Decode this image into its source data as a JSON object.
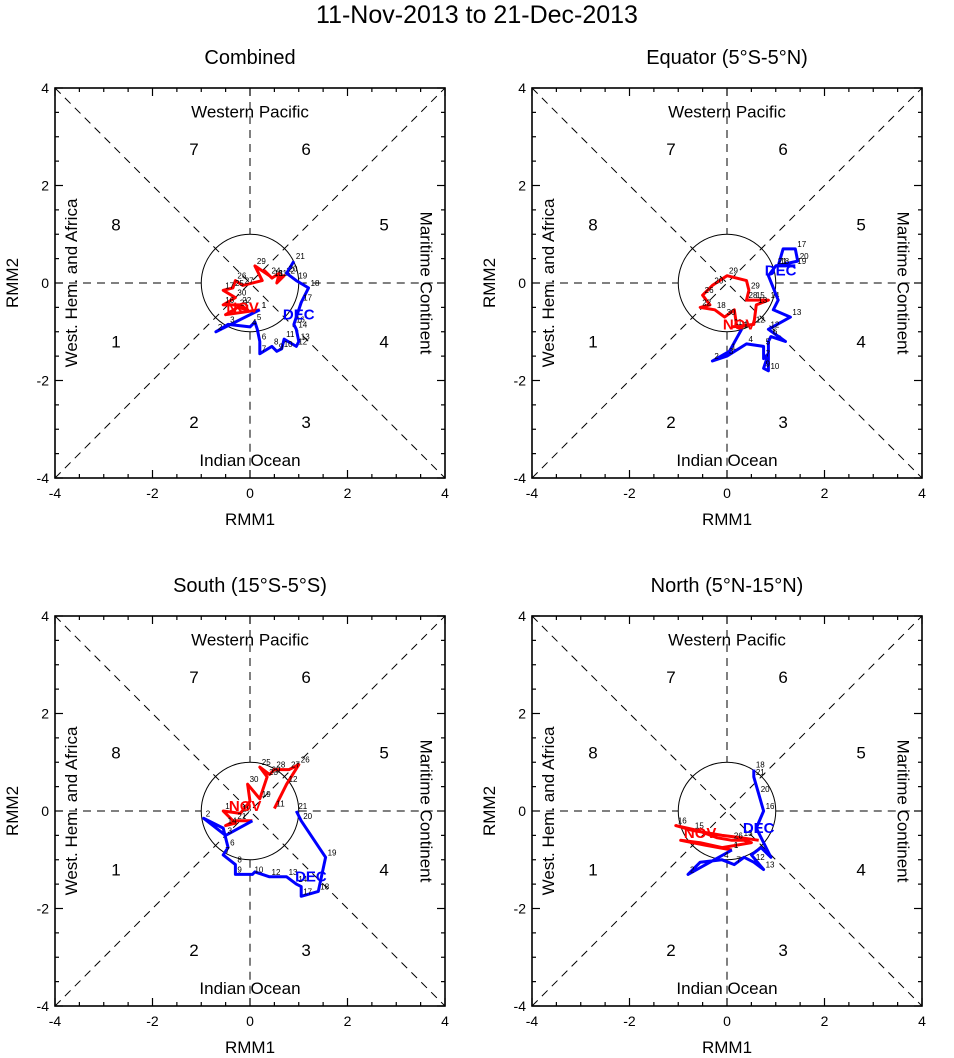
{
  "title": "11-Nov-2013 to 21-Dec-2013",
  "colors": {
    "nov": "#ff0000",
    "dec": "#0000ff",
    "axis": "#000000"
  },
  "chart_data": [
    {
      "type": "line",
      "title": "Combined",
      "xlabel": "RMM1",
      "ylabel": "RMM2",
      "xlim": [
        -4,
        4
      ],
      "ylim": [
        -4,
        4
      ],
      "xticks": [
        "-4",
        "-2",
        "0",
        "2",
        "4"
      ],
      "yticks": [
        "-4",
        "-2",
        "0",
        "2",
        "4"
      ],
      "phase_labels": [
        "1",
        "2",
        "3",
        "4",
        "5",
        "6",
        "7",
        "8"
      ],
      "region_labels": {
        "top": "Western Pacific",
        "bottom": "Indian Ocean",
        "left": "West. Hem. and Africa",
        "right": "Maritime Continent"
      },
      "month_labels": {
        "nov": {
          "text": "NOV",
          "x": -0.15,
          "y": -0.6
        },
        "dec": {
          "text": "DEC",
          "x": 1.0,
          "y": -0.75
        }
      },
      "series": [
        {
          "name": "NOV",
          "points": [
            [
              0.55,
              0.1,
              "11"
            ],
            [
              0.7,
              0.15,
              "12"
            ],
            [
              0.55,
              0.0,
              ""
            ],
            [
              0.6,
              0.2,
              ""
            ],
            [
              0.45,
              0.1,
              "13"
            ],
            [
              0.3,
              0.25,
              ""
            ],
            [
              0.4,
              0.15,
              "24"
            ],
            [
              0.1,
              0.35,
              "29"
            ],
            [
              0.25,
              0.05,
              ""
            ],
            [
              -0.15,
              -0.05,
              "27"
            ],
            [
              -0.3,
              0.05,
              "26"
            ],
            [
              -0.35,
              -0.1,
              "25"
            ],
            [
              -0.55,
              -0.15,
              "17"
            ],
            [
              -0.3,
              -0.3,
              "30"
            ],
            [
              -0.55,
              -0.45,
              "16"
            ],
            [
              -0.2,
              -0.45,
              "22"
            ],
            [
              -0.05,
              -0.55,
              ""
            ],
            [
              -0.25,
              -0.5,
              "21"
            ],
            [
              -0.5,
              -0.65,
              ""
            ],
            [
              0.2,
              -0.55,
              "1"
            ]
          ]
        },
        {
          "name": "DEC",
          "points": [
            [
              0.2,
              -0.55,
              "1"
            ],
            [
              -0.7,
              -1.0,
              "2"
            ],
            [
              -0.45,
              -0.85,
              "3"
            ],
            [
              0.0,
              -0.9,
              "4"
            ],
            [
              0.1,
              -0.8,
              "5"
            ],
            [
              0.15,
              -0.95,
              ""
            ],
            [
              0.2,
              -1.2,
              "6"
            ],
            [
              0.2,
              -1.45,
              "7"
            ],
            [
              0.45,
              -1.3,
              "8"
            ],
            [
              0.55,
              -1.4,
              "9"
            ],
            [
              0.65,
              -1.35,
              "10"
            ],
            [
              0.7,
              -1.15,
              "11"
            ],
            [
              0.95,
              -1.3,
              "12"
            ],
            [
              1.0,
              -1.2,
              "13"
            ],
            [
              0.95,
              -0.95,
              "14"
            ],
            [
              0.9,
              -0.85,
              "16"
            ],
            [
              1.05,
              -0.4,
              "17"
            ],
            [
              1.2,
              -0.1,
              "18"
            ],
            [
              0.95,
              0.05,
              "19"
            ],
            [
              0.75,
              0.2,
              "20"
            ],
            [
              0.9,
              0.45,
              "21"
            ]
          ]
        }
      ]
    },
    {
      "type": "line",
      "title": "Equator (5°S-5°N)",
      "xlabel": "RMM1",
      "ylabel": "RMM2",
      "xlim": [
        -4,
        4
      ],
      "ylim": [
        -4,
        4
      ],
      "xticks": [
        "-4",
        "-2",
        "0",
        "2",
        "4"
      ],
      "yticks": [
        "-4",
        "-2",
        "0",
        "2",
        "4"
      ],
      "phase_labels": [
        "1",
        "2",
        "3",
        "4",
        "5",
        "6",
        "7",
        "8"
      ],
      "region_labels": {
        "top": "Western Pacific",
        "bottom": "Indian Ocean",
        "left": "West. Hem. and Africa",
        "right": "Maritime Continent"
      },
      "month_labels": {
        "nov": {
          "text": "NOV",
          "x": 0.25,
          "y": -0.95
        },
        "dec": {
          "text": "DEC",
          "x": 1.1,
          "y": 0.15
        }
      },
      "series": [
        {
          "name": "NOV",
          "points": [
            [
              0.1,
              -0.9,
              "11"
            ],
            [
              0.55,
              -0.85,
              "12"
            ],
            [
              0.6,
              -0.45,
              "13"
            ],
            [
              0.85,
              -0.35,
              "14"
            ],
            [
              0.55,
              -0.35,
              "15"
            ],
            [
              0.4,
              -0.35,
              "28"
            ],
            [
              0.45,
              -0.15,
              "29"
            ],
            [
              0.4,
              0.05,
              ""
            ],
            [
              0.0,
              0.15,
              "29"
            ],
            [
              -0.3,
              -0.05,
              "20"
            ],
            [
              -0.5,
              -0.25,
              "26"
            ],
            [
              -0.35,
              -0.45,
              ""
            ],
            [
              -0.55,
              -0.5,
              "22"
            ],
            [
              -0.25,
              -0.55,
              "18"
            ],
            [
              -0.05,
              -0.7,
              "30"
            ],
            [
              0.15,
              -0.55,
              ""
            ],
            [
              0.2,
              -0.9,
              ""
            ],
            [
              0.3,
              -0.95,
              "1"
            ]
          ]
        },
        {
          "name": "DEC",
          "points": [
            [
              0.3,
              -0.95,
              "1"
            ],
            [
              0.05,
              -1.4,
              "1"
            ],
            [
              -0.3,
              -1.6,
              "2"
            ],
            [
              0.0,
              -1.5,
              "3"
            ],
            [
              0.4,
              -1.25,
              "4"
            ],
            [
              0.75,
              -1.3,
              "5"
            ],
            [
              0.75,
              -1.55,
              "7"
            ],
            [
              0.85,
              -1.45,
              ""
            ],
            [
              0.75,
              -1.75,
              "9"
            ],
            [
              0.85,
              -1.8,
              "10"
            ],
            [
              0.85,
              -1.2,
              ""
            ],
            [
              0.9,
              -1.1,
              "6"
            ],
            [
              1.2,
              -1.2,
              ""
            ],
            [
              0.85,
              -0.95,
              "12"
            ],
            [
              1.3,
              -0.7,
              "13"
            ],
            [
              0.95,
              -0.55,
              ""
            ],
            [
              1.05,
              -0.35,
              ""
            ],
            [
              0.85,
              0.15,
              ""
            ],
            [
              1.0,
              0.35,
              "21"
            ],
            [
              1.45,
              0.45,
              "20"
            ],
            [
              1.4,
              0.7,
              "17"
            ],
            [
              1.15,
              0.7,
              ""
            ],
            [
              1.05,
              0.35,
              "18"
            ],
            [
              1.4,
              0.35,
              "19"
            ]
          ]
        }
      ]
    },
    {
      "type": "line",
      "title": "South (15°S-5°S)",
      "xlabel": "RMM1",
      "ylabel": "RMM2",
      "xlim": [
        -4,
        4
      ],
      "ylim": [
        -4,
        4
      ],
      "xticks": [
        "-4",
        "-2",
        "0",
        "2",
        "4"
      ],
      "yticks": [
        "-4",
        "-2",
        "0",
        "2",
        "4"
      ],
      "phase_labels": [
        "1",
        "2",
        "3",
        "4",
        "5",
        "6",
        "7",
        "8"
      ],
      "region_labels": {
        "top": "Western Pacific",
        "bottom": "Indian Ocean",
        "left": "West. Hem. and Africa",
        "right": "Maritime Continent"
      },
      "month_labels": {
        "nov": {
          "text": "NOV",
          "x": -0.1,
          "y": 0.0
        },
        "dec": {
          "text": "DEC",
          "x": 1.25,
          "y": -1.45
        }
      },
      "series": [
        {
          "name": "NOV",
          "points": [
            [
              0.5,
              0.05,
              "11"
            ],
            [
              0.75,
              0.55,
              "12"
            ],
            [
              1.0,
              0.95,
              "26"
            ],
            [
              0.8,
              0.85,
              "27"
            ],
            [
              0.5,
              0.85,
              "28"
            ],
            [
              0.4,
              0.75,
              "29"
            ],
            [
              0.2,
              0.9,
              "25"
            ],
            [
              0.35,
              0.7,
              "23"
            ],
            [
              0.2,
              0.25,
              "19"
            ],
            [
              -0.05,
              0.55,
              "30"
            ],
            [
              0.0,
              0.2,
              ""
            ],
            [
              -0.2,
              -0.05,
              "18"
            ],
            [
              -0.55,
              0.0,
              "1"
            ],
            [
              -0.3,
              -0.25,
              ""
            ],
            [
              -0.5,
              -0.3,
              "14"
            ],
            [
              -0.3,
              -0.2,
              "21"
            ],
            [
              0.05,
              -0.2,
              ""
            ]
          ]
        },
        {
          "name": "DEC",
          "points": [
            [
              0.05,
              -0.2,
              ""
            ],
            [
              -0.5,
              -0.5,
              "3"
            ],
            [
              -0.95,
              -0.15,
              "2"
            ],
            [
              -0.55,
              -0.35,
              ""
            ],
            [
              -0.45,
              -0.75,
              "6"
            ],
            [
              -0.55,
              -0.9,
              "7"
            ],
            [
              -0.3,
              -1.1,
              "8"
            ],
            [
              -0.3,
              -1.3,
              "9"
            ],
            [
              0.05,
              -1.3,
              "10"
            ],
            [
              0.1,
              -1.25,
              ""
            ],
            [
              0.4,
              -1.35,
              "12"
            ],
            [
              0.75,
              -1.35,
              "13"
            ],
            [
              0.95,
              -1.5,
              "14"
            ],
            [
              1.05,
              -1.55,
              ""
            ],
            [
              1.05,
              -1.75,
              "17"
            ],
            [
              1.4,
              -1.65,
              "18"
            ],
            [
              1.55,
              -0.95,
              "19"
            ],
            [
              1.05,
              -0.2,
              "20"
            ],
            [
              0.95,
              0.0,
              "21"
            ]
          ]
        }
      ]
    },
    {
      "type": "line",
      "title": "North (5°N-15°N)",
      "xlabel": "RMM1",
      "ylabel": "RMM2",
      "xlim": [
        -4,
        4
      ],
      "ylim": [
        -4,
        4
      ],
      "xticks": [
        "-4",
        "-2",
        "0",
        "2",
        "4"
      ],
      "yticks": [
        "-4",
        "-2",
        "0",
        "2",
        "4"
      ],
      "phase_labels": [
        "1",
        "2",
        "3",
        "4",
        "5",
        "6",
        "7",
        "8"
      ],
      "region_labels": {
        "top": "Western Pacific",
        "bottom": "Indian Ocean",
        "left": "West. Hem. and Africa",
        "right": "Maritime Continent"
      },
      "month_labels": {
        "nov": {
          "text": "NOV",
          "x": -0.55,
          "y": -0.55
        },
        "dec": {
          "text": "DEC",
          "x": 0.65,
          "y": -0.45
        }
      },
      "series": [
        {
          "name": "NOV",
          "points": [
            [
              0.65,
              -0.6,
              ""
            ],
            [
              0.3,
              -0.55,
              "13"
            ],
            [
              -0.1,
              -0.5,
              ""
            ],
            [
              -0.4,
              -0.45,
              ""
            ],
            [
              -0.7,
              -0.4,
              "15"
            ],
            [
              -1.05,
              -0.3,
              "16"
            ],
            [
              -0.6,
              -0.4,
              ""
            ],
            [
              -0.2,
              -0.55,
              ""
            ],
            [
              0.1,
              -0.6,
              "26"
            ],
            [
              0.35,
              -0.6,
              ""
            ],
            [
              0.5,
              -0.65,
              ""
            ],
            [
              -0.1,
              -0.75,
              ""
            ],
            [
              -0.55,
              -0.65,
              ""
            ],
            [
              -0.95,
              -0.6,
              ""
            ],
            [
              -0.45,
              -0.7,
              ""
            ],
            [
              0.1,
              -0.8,
              "1"
            ]
          ]
        },
        {
          "name": "DEC",
          "points": [
            [
              0.1,
              -0.8,
              "1"
            ],
            [
              -0.8,
              -1.3,
              "2"
            ],
            [
              -0.55,
              -1.05,
              ""
            ],
            [
              -0.1,
              -1.0,
              "4"
            ],
            [
              0.15,
              -1.1,
              "7"
            ],
            [
              0.35,
              -0.95,
              ""
            ],
            [
              0.55,
              -1.05,
              "12"
            ],
            [
              0.75,
              -1.2,
              "13"
            ],
            [
              0.5,
              -0.9,
              ""
            ],
            [
              0.7,
              -0.75,
              ""
            ],
            [
              0.9,
              -0.95,
              ""
            ],
            [
              0.75,
              -0.65,
              ""
            ],
            [
              0.6,
              -0.35,
              ""
            ],
            [
              0.75,
              0.0,
              "16"
            ],
            [
              0.65,
              0.35,
              "20"
            ],
            [
              0.55,
              0.7,
              "21"
            ],
            [
              0.55,
              0.85,
              "18"
            ]
          ]
        }
      ]
    }
  ]
}
